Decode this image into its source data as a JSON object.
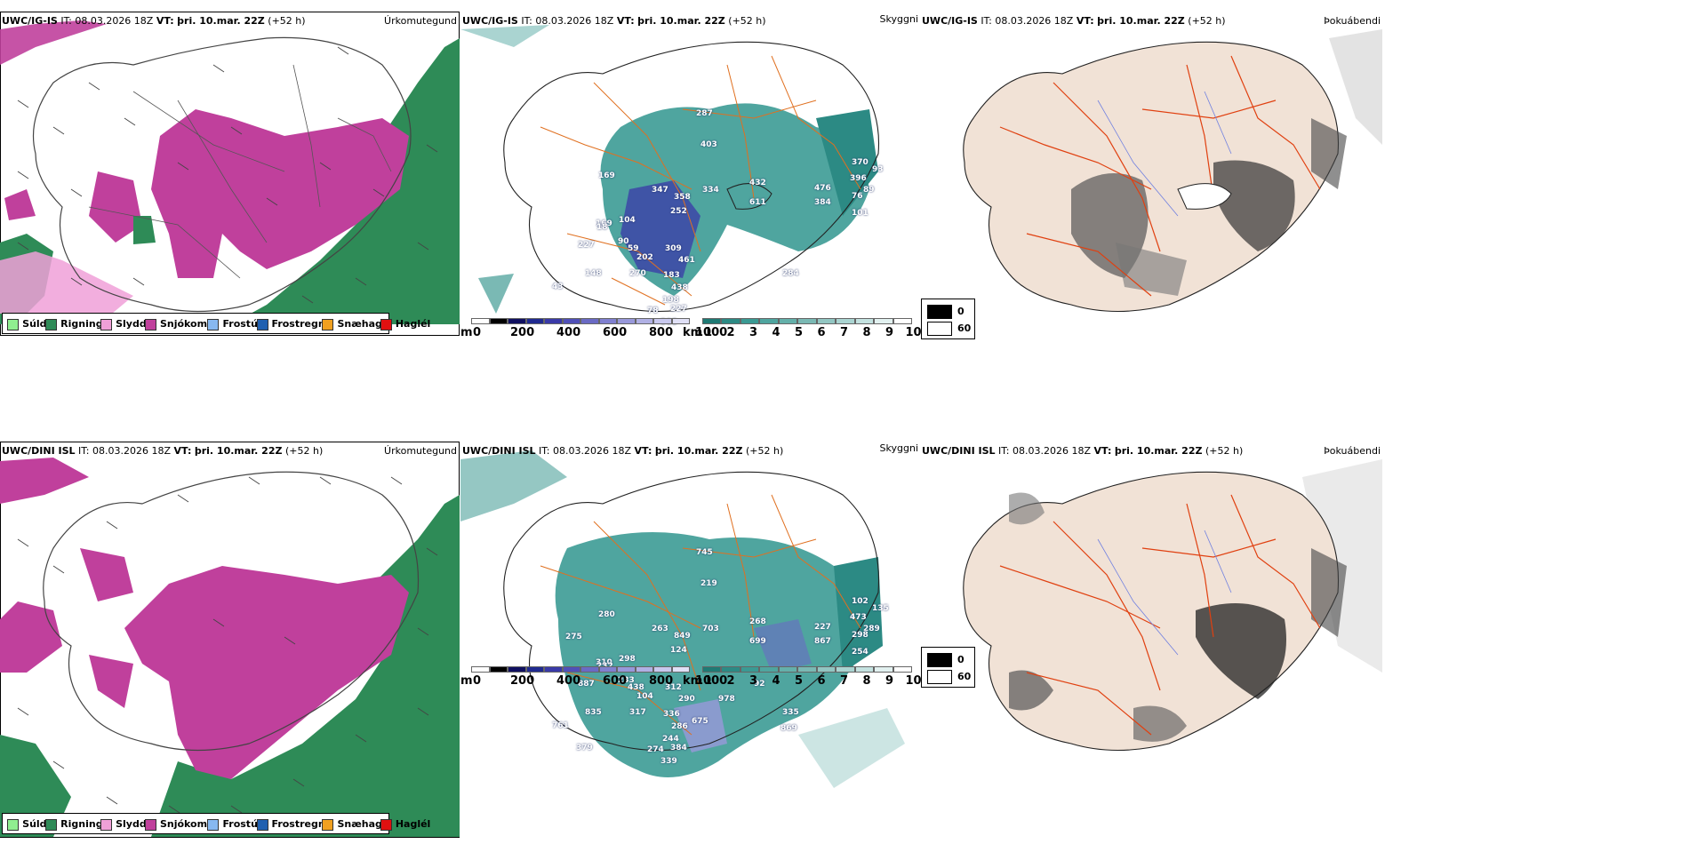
{
  "rows": [
    {
      "model": "UWC/IG-IS",
      "it_label": "IT:",
      "it_value": "08.03.2026 18Z",
      "vt_label": "VT:",
      "vt_value": "þri. 10.mar. 22Z",
      "lead": "(+52 h)",
      "precip_label": "Úrkomutegund",
      "cloud_label": "Skyggni",
      "fog_label": "Þokuábendi",
      "numbers": [
        "287",
        "403",
        "169",
        "432",
        "334",
        "358",
        "611",
        "476",
        "384",
        "101",
        "370",
        "396",
        "89",
        "169",
        "252",
        "104",
        "347",
        "18",
        "90",
        "59",
        "309",
        "202",
        "461",
        "270",
        "148",
        "183",
        "438",
        "198",
        "78",
        "227",
        "308",
        "284",
        "93",
        "76",
        "43",
        "227"
      ]
    },
    {
      "model": "UWC/DINI ISL",
      "it_label": "IT:",
      "it_value": "08.03.2026 18Z",
      "vt_label": "VT:",
      "vt_value": "þri. 10.mar. 22Z",
      "lead": "(+52 h)",
      "precip_label": "Úrkomutegund",
      "cloud_label": "Skyggni",
      "fog_label": "Þokuábendi",
      "numbers": [
        "745",
        "219",
        "280",
        "268",
        "703",
        "849",
        "699",
        "227",
        "867",
        "254",
        "102",
        "473",
        "289",
        "310",
        "124",
        "298",
        "263",
        "232",
        "233",
        "438",
        "312",
        "104",
        "290",
        "317",
        "835",
        "336",
        "286",
        "244",
        "274",
        "384",
        "339",
        "335",
        "135",
        "298",
        "761",
        "887",
        "275",
        "978",
        "92",
        "379",
        "675",
        "869"
      ]
    }
  ],
  "precip_legend": [
    {
      "label": "Súld",
      "color": "#90ee90"
    },
    {
      "label": "Rigning",
      "color": "#2e8b57"
    },
    {
      "label": "Slydda",
      "color": "#f0a0d8"
    },
    {
      "label": "Snjókoma",
      "color": "#c0409c"
    },
    {
      "label": "Frostúði",
      "color": "#87b8f0"
    },
    {
      "label": "Frostregn",
      "color": "#2060b0"
    },
    {
      "label": "Snæhagl",
      "color": "#f0a020"
    },
    {
      "label": "Haglél",
      "color": "#e01010"
    }
  ],
  "cloudbase_scale": {
    "unit": "m",
    "ticks": [
      "0",
      "200",
      "400",
      "600",
      "800",
      "1000"
    ],
    "colors": [
      "#ffffff",
      "#000000",
      "#101060",
      "#202a90",
      "#3a3aa8",
      "#5050b8",
      "#6a6ac4",
      "#8080d0",
      "#9898da",
      "#b0b0e4",
      "#c8c8ee",
      "#e0e0f6"
    ]
  },
  "visibility_scale": {
    "unit": "km",
    "ticks": [
      "1",
      "2",
      "3",
      "4",
      "5",
      "6",
      "7",
      "8",
      "9",
      "10"
    ],
    "colors": [
      "#1f7a74",
      "#2c8a84",
      "#3a9a93",
      "#4fa59f",
      "#64b0aa",
      "#7ab9b4",
      "#92c6c2",
      "#aad4d1",
      "#c4e2e0",
      "#e2f1f0",
      "#ffffff"
    ]
  },
  "fog_legend": {
    "low": "0",
    "high": "60",
    "low_color": "#000000",
    "high_color": "#ffffff"
  }
}
